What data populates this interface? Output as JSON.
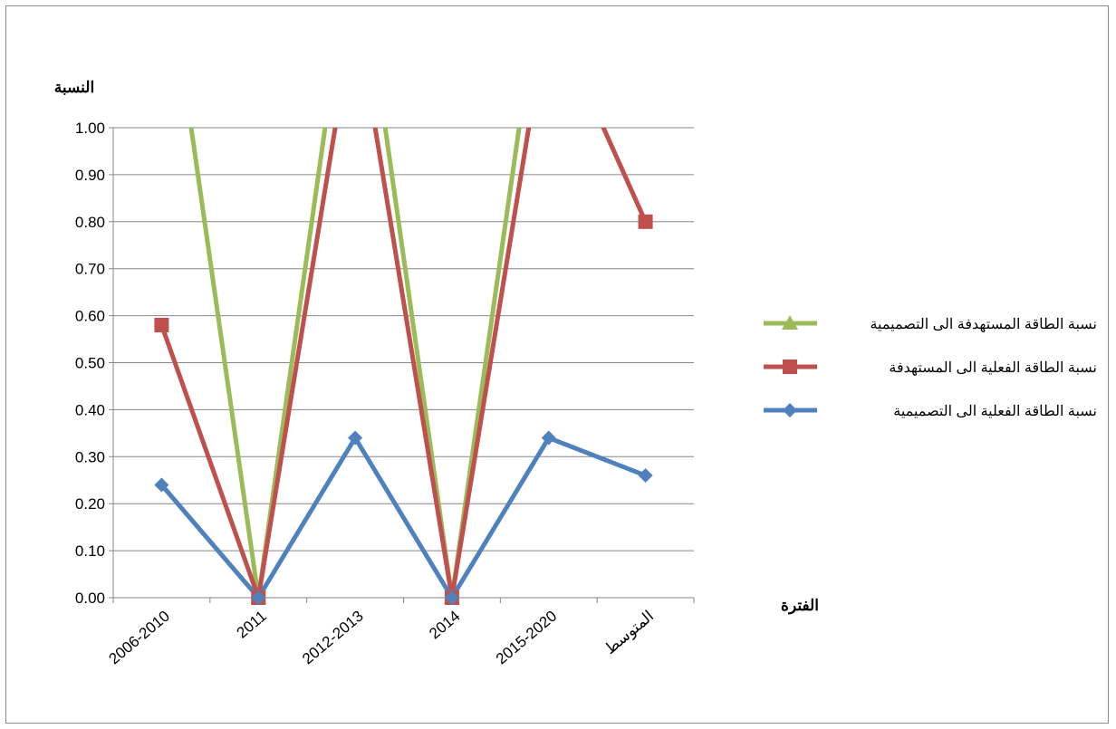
{
  "chart_data": {
    "type": "line",
    "ylabel": "النسبة",
    "xlabel": "الفترة",
    "categories": [
      "2006-2010",
      "2011",
      "2012-2013",
      "2014",
      "2015-2020",
      "المتوسط"
    ],
    "ylim": [
      0,
      1.0
    ],
    "yticks": [
      "0.00",
      "0.10",
      "0.20",
      "0.30",
      "0.40",
      "0.50",
      "0.60",
      "0.70",
      "0.80",
      "0.90",
      "1.00"
    ],
    "grid": true,
    "legend_position": "right",
    "series": [
      {
        "name": "نسبة الطاقة المستهدفة الى التصميمية",
        "color": "#9BBB59",
        "marker": "triangle",
        "values": [
          1.44,
          0,
          1.45,
          0,
          1.44,
          null
        ]
      },
      {
        "name": "نسبة الطاقة الفعلية الى المستهدفة",
        "color": "#C0504D",
        "marker": "square",
        "values": [
          0.58,
          0,
          1.26,
          0,
          1.26,
          0.8
        ]
      },
      {
        "name": "نسبة الطاقة الفعلية الى التصميمية",
        "color": "#4F81BD",
        "marker": "diamond",
        "values": [
          0.24,
          0,
          0.34,
          0,
          0.34,
          0.26
        ]
      }
    ]
  }
}
